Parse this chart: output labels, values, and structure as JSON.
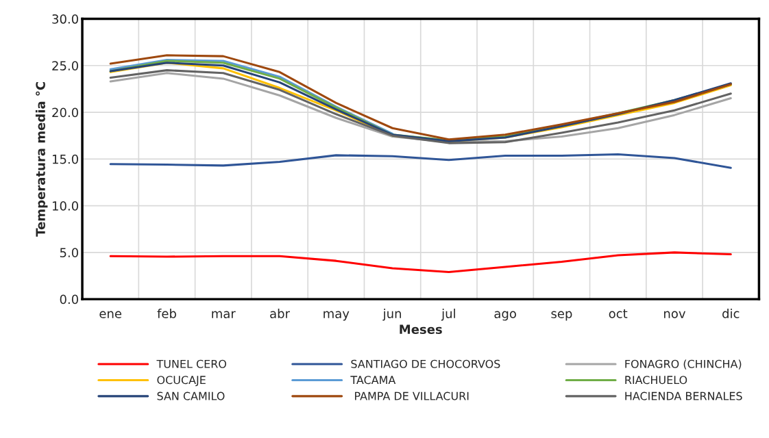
{
  "chart_data": {
    "type": "line",
    "xlabel": "Meses",
    "ylabel": "Temperatura media °C",
    "categories": [
      "ene",
      "feb",
      "mar",
      "abr",
      "may",
      "jun",
      "jul",
      "ago",
      "sep",
      "oct",
      "nov",
      "dic"
    ],
    "ylim": [
      0,
      30
    ],
    "yticks": [
      {
        "value": 0,
        "label": "0.0"
      },
      {
        "value": 5,
        "label": "5.0"
      },
      {
        "value": 10,
        "label": "10.0"
      },
      {
        "value": 15,
        "label": "15.0"
      },
      {
        "value": 20,
        "label": "20.0"
      },
      {
        "value": 25,
        "label": "25.0"
      },
      {
        "value": 30,
        "label": "30.0"
      }
    ],
    "grid": true,
    "legend": "bottom",
    "marker": "none",
    "line_style": "solid",
    "series": [
      {
        "name": "TUNEL CERO",
        "color": "#ff0000",
        "values": [
          4.6,
          4.55,
          4.6,
          4.6,
          4.1,
          3.3,
          2.9,
          3.45,
          4.0,
          4.7,
          5.0,
          4.8
        ]
      },
      {
        "name": "SANTIAGO DE CHOCORVOS",
        "color": "#2f5597",
        "values": [
          14.45,
          14.4,
          14.3,
          14.7,
          15.4,
          15.3,
          14.9,
          15.35,
          15.35,
          15.5,
          15.1,
          14.05
        ]
      },
      {
        "name": "FONAGRO (CHINCHA)",
        "color": "#a5a5a5",
        "values": [
          23.3,
          24.2,
          23.6,
          21.8,
          19.4,
          17.4,
          16.8,
          16.9,
          17.4,
          18.3,
          19.7,
          21.5
        ]
      },
      {
        "name": "OCUCAJE",
        "color": "#ffc000",
        "values": [
          24.3,
          25.3,
          24.7,
          22.6,
          20.2,
          17.5,
          16.9,
          17.3,
          18.4,
          19.7,
          21.0,
          22.9
        ]
      },
      {
        "name": "TACAMA",
        "color": "#5b9bd5",
        "values": [
          24.6,
          25.6,
          25.5,
          23.8,
          20.6,
          17.7,
          null,
          null,
          null,
          19.9,
          21.2,
          23.0
        ]
      },
      {
        "name": "RIACHUELO",
        "color": "#70ad47",
        "values": [
          24.4,
          25.5,
          25.3,
          23.6,
          20.5,
          17.6,
          17.0,
          17.4,
          18.6,
          19.9,
          21.3,
          23.0
        ]
      },
      {
        "name": "SAN CAMILO",
        "color": "#264478",
        "values": [
          24.4,
          25.3,
          25.0,
          23.2,
          20.3,
          17.6,
          16.9,
          17.3,
          18.5,
          19.8,
          21.3,
          23.1
        ]
      },
      {
        "name": " PAMPA DE VILLACURI",
        "color": "#9e480e",
        "values": [
          25.2,
          26.1,
          26.0,
          24.3,
          21.0,
          18.3,
          17.1,
          17.6,
          18.7,
          19.9,
          21.1,
          23.0
        ]
      },
      {
        "name": "HACIENDA BERNALES",
        "color": "#636363",
        "values": [
          23.7,
          24.5,
          24.2,
          22.4,
          19.8,
          17.5,
          16.7,
          16.8,
          17.8,
          18.9,
          20.2,
          22.0
        ]
      }
    ]
  }
}
